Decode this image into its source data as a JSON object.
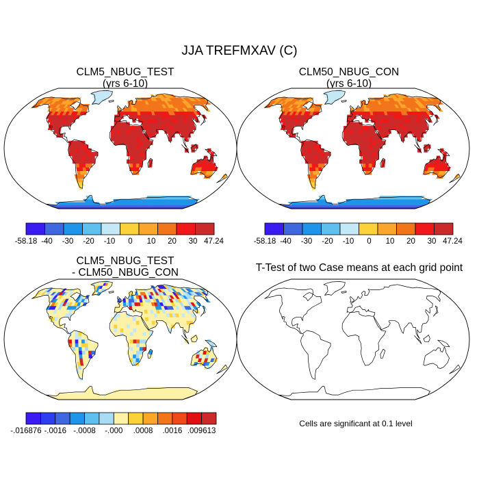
{
  "title": "JJA TREFMXAV (C)",
  "panels": [
    {
      "title": "CLM5_NBUG_TEST",
      "subtitle": "(yrs 6-10)"
    },
    {
      "title": "CLM50_NBUG_CON",
      "subtitle": "(yrs 6-10)"
    },
    {
      "title": "CLM5_NBUG_TEST",
      "subtitle": "- CLM50_NBUG_CON"
    },
    {
      "title": "T-Test of two Case means at each grid point",
      "subtitle": ""
    }
  ],
  "significance_note": "Cells are significant at 0.1 level",
  "chart_data": [
    {
      "type": "heatmap",
      "title": "CLM5_NBUG_TEST (yrs 6-10)",
      "projection": "Robinson",
      "colorbar": {
        "labels": [
          "-58.18",
          "-40",
          "-30",
          "-20",
          "-10",
          "0",
          "10",
          "20",
          "30",
          "47.24"
        ],
        "colors": [
          "#3a1cf2",
          "#3f68e0",
          "#1e95ea",
          "#5ec0ee",
          "#c5e8f7",
          "#fcd23a",
          "#fba52a",
          "#f3751a",
          "#f01818",
          "#cc2a2a"
        ]
      }
    },
    {
      "type": "heatmap",
      "title": "CLM50_NBUG_CON (yrs 6-10)",
      "projection": "Robinson",
      "colorbar": {
        "labels": [
          "-58.18",
          "-40",
          "-30",
          "-20",
          "-10",
          "0",
          "10",
          "20",
          "30",
          "47.24"
        ],
        "colors": [
          "#3a1cf2",
          "#3f68e0",
          "#1e95ea",
          "#5ec0ee",
          "#c5e8f7",
          "#fcd23a",
          "#fba52a",
          "#f3751a",
          "#f01818",
          "#cc2a2a"
        ]
      }
    },
    {
      "type": "heatmap",
      "title": "CLM5_NBUG_TEST - CLM50_NBUG_CON",
      "projection": "Robinson",
      "colorbar": {
        "labels": [
          "-.016876",
          "-.0016",
          "-.0008",
          "-.000",
          ".0008",
          ".0016",
          ".009613"
        ],
        "colors": [
          "#3a1cf2",
          "#2c3ef0",
          "#3f68e0",
          "#1e95ea",
          "#5ec0ee",
          "#a8dcf5",
          "#fdf2a5",
          "#fcd23a",
          "#fba52a",
          "#f3751a",
          "#f04a18",
          "#e01010",
          "#cc2a2a"
        ]
      }
    },
    {
      "type": "heatmap",
      "title": "T-Test of two Case means at each grid point",
      "projection": "Robinson",
      "significant_cells": []
    }
  ]
}
